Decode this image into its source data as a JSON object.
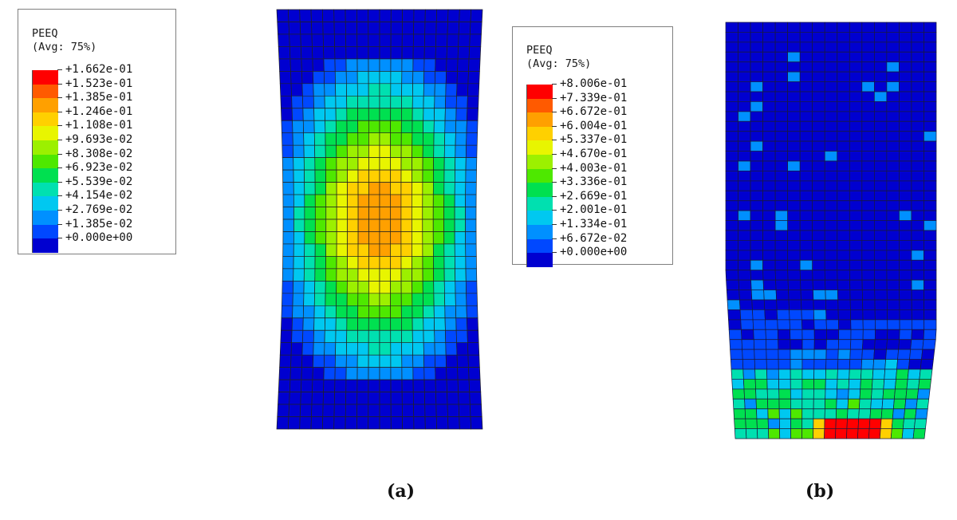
{
  "panel_a": {
    "legend": {
      "title": "PEEQ",
      "subtitle": "(Avg: 75%)",
      "ticks": [
        "+1.662e-01",
        "+1.523e-01",
        "+1.385e-01",
        "+1.246e-01",
        "+1.108e-01",
        "+9.693e-02",
        "+8.308e-02",
        "+6.923e-02",
        "+5.539e-02",
        "+4.154e-02",
        "+2.769e-02",
        "+1.385e-02",
        "+0.000e+00"
      ]
    },
    "caption": "(a)"
  },
  "panel_b": {
    "legend": {
      "title": "PEEQ",
      "subtitle": "(Avg: 75%)",
      "ticks": [
        "+8.006e-01",
        "+7.339e-01",
        "+6.672e-01",
        "+6.004e-01",
        "+5.337e-01",
        "+4.670e-01",
        "+4.003e-01",
        "+3.336e-01",
        "+2.669e-01",
        "+2.001e-01",
        "+1.334e-01",
        "+6.672e-02",
        "+0.000e+00"
      ]
    },
    "caption": "(b)"
  },
  "colormap": [
    "#ff0000",
    "#ff5a00",
    "#ffa000",
    "#ffd000",
    "#e8f500",
    "#9cf000",
    "#4ee800",
    "#00e050",
    "#00e0b0",
    "#00c8f0",
    "#0090ff",
    "#0048ff",
    "#0000d0"
  ]
}
